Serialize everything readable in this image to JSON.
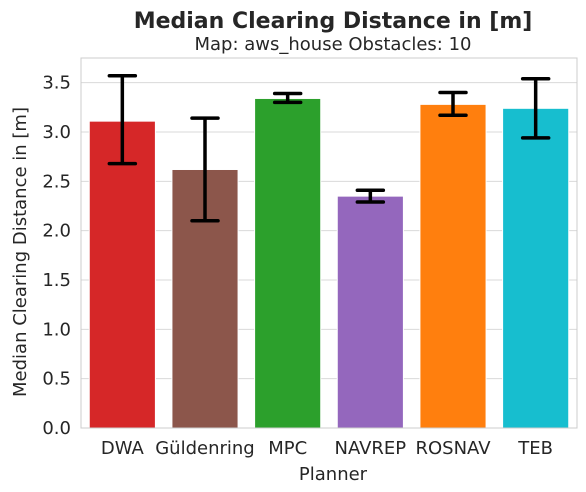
{
  "chart_data": {
    "type": "bar",
    "title": "Median Clearing Distance in [m]",
    "subtitle": "Map: aws_house Obstacles: 10",
    "xlabel": "Planner",
    "ylabel": "Median Clearing Distance in [m]",
    "ylim": [
      0,
      3.75
    ],
    "yticks": [
      "0.0",
      "0.5",
      "1.0",
      "1.5",
      "2.0",
      "2.5",
      "3.0",
      "3.5"
    ],
    "grid": true,
    "legend": "none",
    "categories": [
      "DWA",
      "Güldenring",
      "MPC",
      "NAVREP",
      "ROSNAV",
      "TEB"
    ],
    "values": [
      3.11,
      2.62,
      3.34,
      2.35,
      3.28,
      3.24
    ],
    "error_low": [
      2.68,
      2.1,
      3.3,
      2.29,
      3.17,
      2.94
    ],
    "error_high": [
      3.57,
      3.14,
      3.39,
      2.41,
      3.4,
      3.54
    ],
    "colors": [
      "#d62728",
      "#8c564b",
      "#2ca02c",
      "#9467bd",
      "#ff7f0e",
      "#17becf"
    ]
  }
}
